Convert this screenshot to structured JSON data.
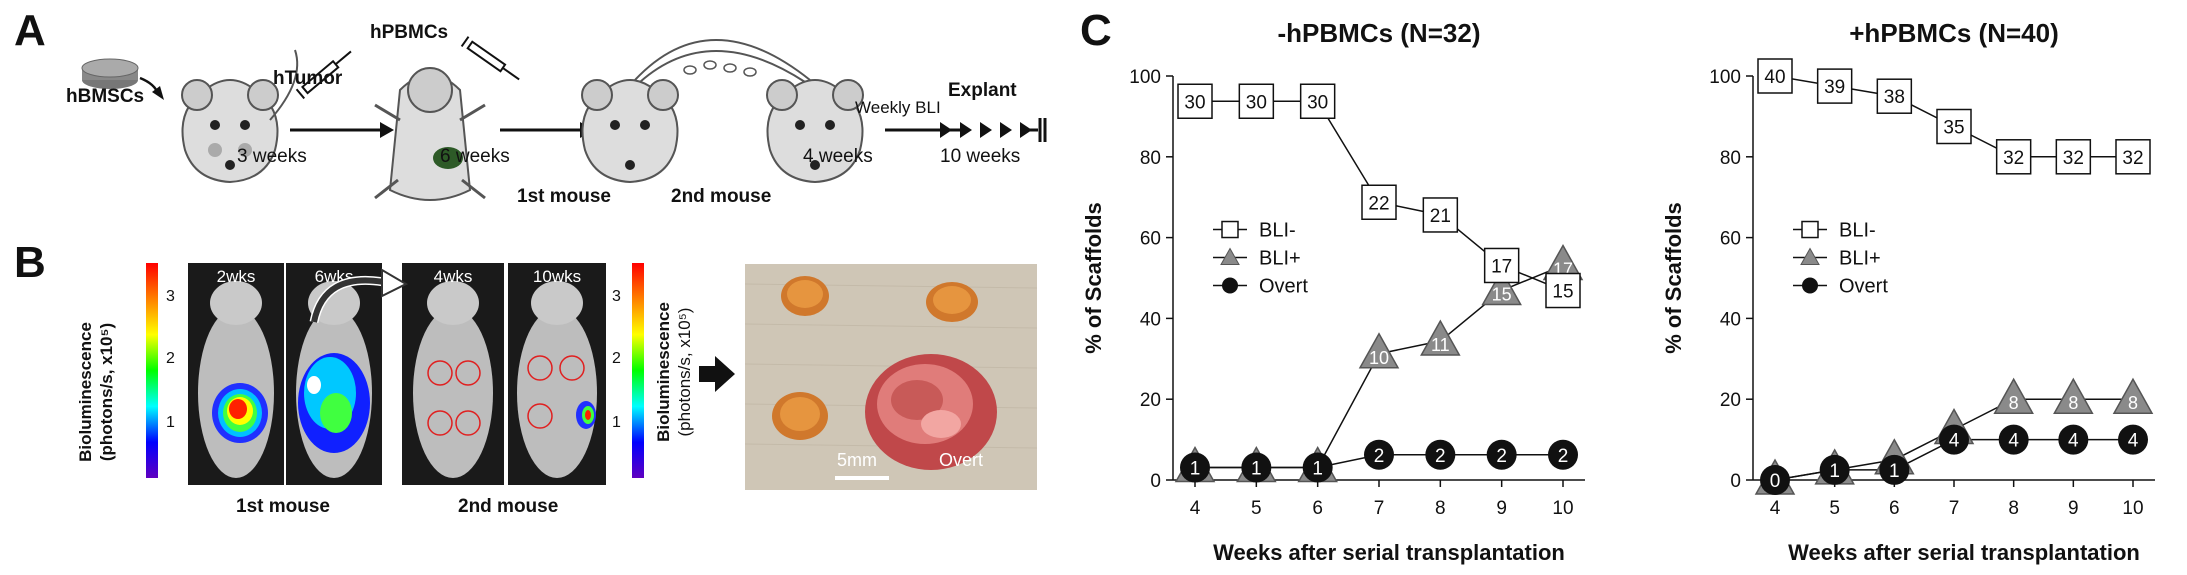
{
  "panels": {
    "a": {
      "letter": "A",
      "labels": {
        "hbmsc": "hBMSCs",
        "htumor": "hTumor",
        "hpbmc": "hPBMCs",
        "weeks3": "3 weeks",
        "weeks6": "6 weeks",
        "first_mouse": "1st mouse",
        "second_mouse": "2nd mouse",
        "weeks4": "4 weeks",
        "weekly_bli": "Weekly BLI",
        "explant": "Explant",
        "weeks10": "10 weeks"
      }
    },
    "b": {
      "letter": "B",
      "colorbar_left": {
        "label_line1": "Bioluminescence",
        "label_line2": "(photons/s, x10⁵)",
        "ticks": [
          "3",
          "2",
          "1"
        ]
      },
      "colorbar_right": {
        "label_line1": "Bioluminescence",
        "label_line2": "(photons/s, x10⁵)",
        "ticks": [
          "3",
          "2",
          "1"
        ]
      },
      "images": [
        {
          "week": "2wks"
        },
        {
          "week": "6wks"
        },
        {
          "week": "4wks"
        },
        {
          "week": "10wks"
        }
      ],
      "caption_first": "1st mouse",
      "caption_second": "2nd mouse",
      "photo": {
        "scale": "5mm",
        "overt": "Overt"
      }
    },
    "c": {
      "letter": "C"
    }
  },
  "chart_data": [
    {
      "type": "line",
      "title": "-hPBMCs (N=32)",
      "xlabel": "Weeks after serial transplantation",
      "ylabel": "% of Scaffolds",
      "x": [
        4,
        5,
        6,
        7,
        8,
        9,
        10
      ],
      "ylim": [
        0,
        100
      ],
      "yticks": [
        0,
        20,
        40,
        60,
        80,
        100
      ],
      "legend": "left-middle",
      "series": [
        {
          "name": "BLI-",
          "marker": "square",
          "values": [
            93.75,
            93.75,
            93.75,
            68.75,
            65.6,
            53.1,
            46.9
          ],
          "labels": [
            "30",
            "30",
            "30",
            "22",
            "21",
            "17",
            "15"
          ]
        },
        {
          "name": "BLI+",
          "marker": "triangle",
          "values": [
            3.1,
            3.1,
            3.1,
            31.25,
            34.4,
            46.9,
            53.1
          ],
          "labels": [
            "1",
            "1",
            "1",
            "10",
            "11",
            "15",
            "17"
          ]
        },
        {
          "name": "Overt",
          "marker": "circle",
          "values": [
            3.1,
            3.1,
            3.1,
            6.25,
            6.25,
            6.25,
            6.25
          ],
          "labels": [
            "1",
            "1",
            "1",
            "2",
            "2",
            "2",
            "2"
          ]
        }
      ]
    },
    {
      "type": "line",
      "title": "+hPBMCs (N=40)",
      "xlabel": "Weeks after serial transplantation",
      "ylabel": "% of Scaffolds",
      "x": [
        4,
        5,
        6,
        7,
        8,
        9,
        10
      ],
      "ylim": [
        0,
        100
      ],
      "yticks": [
        0,
        20,
        40,
        60,
        80,
        100
      ],
      "legend": "left-middle",
      "series": [
        {
          "name": "BLI-",
          "marker": "square",
          "values": [
            100,
            97.5,
            95,
            87.5,
            80,
            80,
            80
          ],
          "labels": [
            "40",
            "39",
            "38",
            "35",
            "32",
            "32",
            "32"
          ]
        },
        {
          "name": "BLI+",
          "marker": "triangle",
          "values": [
            0,
            2.5,
            5,
            12.5,
            20,
            20,
            20
          ],
          "labels": [
            "",
            "",
            "",
            "",
            "8",
            "8",
            "8"
          ]
        },
        {
          "name": "Overt",
          "marker": "circle",
          "values": [
            0,
            2.5,
            2.5,
            10,
            10,
            10,
            10
          ],
          "labels": [
            "0",
            "1",
            "1",
            "4",
            "4",
            "4",
            "4"
          ]
        }
      ]
    }
  ]
}
